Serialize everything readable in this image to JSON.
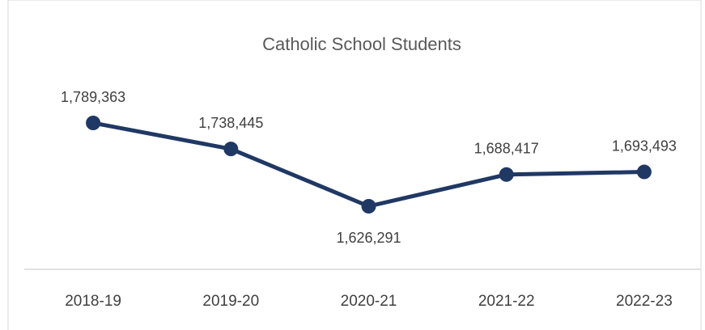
{
  "chart_data": {
    "type": "line",
    "title": "Catholic School Students",
    "categories": [
      "2018-19",
      "2019-20",
      "2020-21",
      "2021-22",
      "2022-23"
    ],
    "series": [
      {
        "color": "#203864",
        "values": [
          1789363,
          1738445,
          1626291,
          1688417,
          1693493
        ],
        "value_labels": [
          "1,789,363",
          "1,738,445",
          "1,626,291",
          "1,688,417",
          "1,693,493"
        ]
      }
    ]
  }
}
